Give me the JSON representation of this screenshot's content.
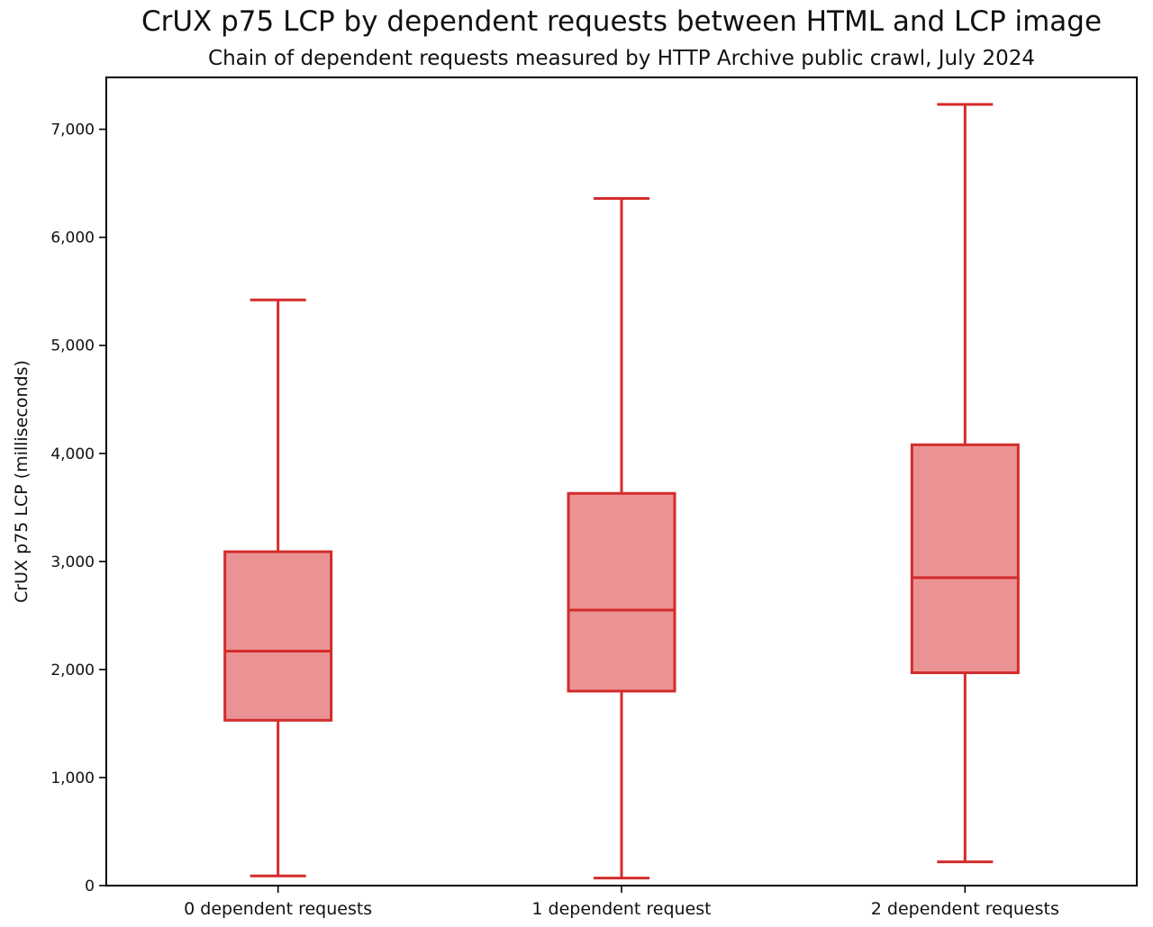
{
  "chart_data": {
    "type": "boxplot",
    "title": "CrUX p75 LCP by dependent requests between HTML and LCP image",
    "subtitle": "Chain of dependent requests measured by HTTP Archive public crawl, July 2024",
    "xlabel": "",
    "ylabel": "CrUX p75 LCP (milliseconds)",
    "ylim": [
      0,
      7480
    ],
    "yticks": [
      0,
      1000,
      2000,
      3000,
      4000,
      5000,
      6000,
      7000
    ],
    "grid": false,
    "legend": "none",
    "categories": [
      "0 dependent requests",
      "1 dependent request",
      "2 dependent requests"
    ],
    "series": [
      {
        "category": "0 dependent requests",
        "whisker_low": 90,
        "q1": 1530,
        "median": 2170,
        "q3": 3090,
        "whisker_high": 5420
      },
      {
        "category": "1 dependent request",
        "whisker_low": 70,
        "q1": 1800,
        "median": 2550,
        "q3": 3630,
        "whisker_high": 6360
      },
      {
        "category": "2 dependent requests",
        "whisker_low": 220,
        "q1": 1970,
        "median": 2850,
        "q3": 4080,
        "whisker_high": 7230
      }
    ],
    "colors": {
      "box_fill": "#eb9394",
      "box_edge": "#d32b2c",
      "axis": "#000000"
    }
  }
}
